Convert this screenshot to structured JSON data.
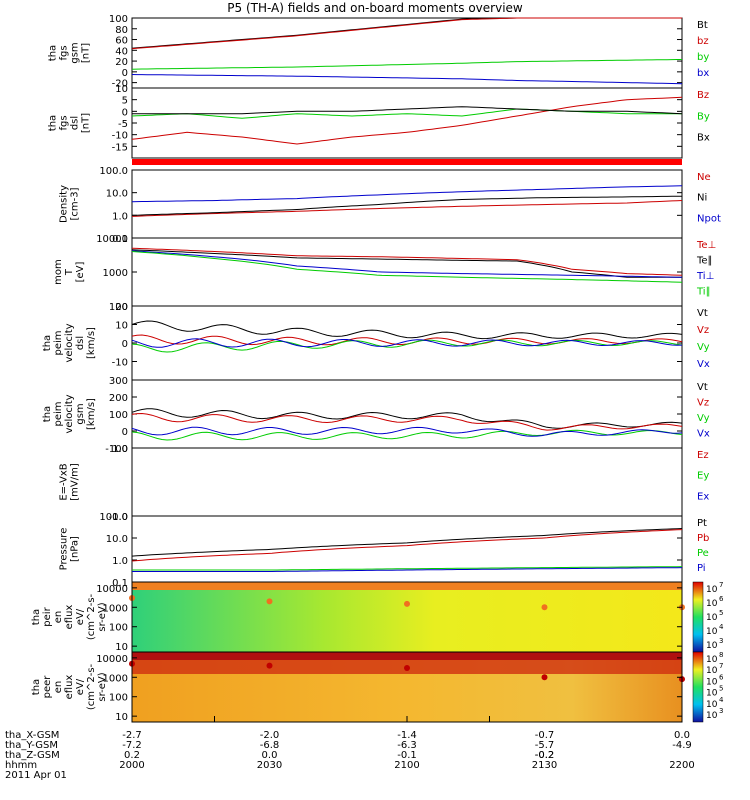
{
  "title": "P5 (TH-A) fields and on-board moments overview",
  "date_label": "2011 Apr 01",
  "chart_data": [
    {
      "type": "line",
      "panel": "fgs_gsm",
      "ylabel": [
        "tha",
        "fgs",
        "gsm",
        "[nT]"
      ],
      "ylim": [
        -30,
        100
      ],
      "yscale": "linear",
      "yticks": [
        -20,
        0,
        20,
        40,
        60,
        80,
        100
      ],
      "legend": [
        {
          "label": "Bt",
          "color": "#000000"
        },
        {
          "label": "bz",
          "color": "#cc0000"
        },
        {
          "label": "by",
          "color": "#00cc00"
        },
        {
          "label": "bx",
          "color": "#0000cc"
        }
      ],
      "x": [
        2000,
        2060,
        2120,
        2140,
        2200
      ],
      "series": [
        {
          "name": "Bt",
          "values": [
            44,
            68,
            98,
            100,
            100
          ]
        },
        {
          "name": "bz",
          "values": [
            43,
            67,
            97,
            100,
            100
          ]
        },
        {
          "name": "by",
          "values": [
            5,
            9,
            16,
            19,
            23
          ]
        },
        {
          "name": "bx",
          "values": [
            -5,
            -8,
            -13,
            -16,
            -22
          ]
        }
      ]
    },
    {
      "type": "line",
      "panel": "fgs_dsl_detrended",
      "ylabel": [
        "tha",
        "fgs",
        "dsl",
        "[nT]"
      ],
      "ylim": [
        -20,
        10
      ],
      "yscale": "linear",
      "yticks": [
        -15,
        -10,
        -5,
        0,
        5,
        10
      ],
      "legend": [
        {
          "label": "Bz",
          "color": "#cc0000"
        },
        {
          "label": "By",
          "color": "#00cc00"
        },
        {
          "label": "Bx",
          "color": "#000000"
        }
      ],
      "x": [
        2000,
        2020,
        2040,
        2060,
        2080,
        2100,
        2120,
        2140,
        2160,
        2180,
        2200
      ],
      "series": [
        {
          "name": "Bz",
          "values": [
            -12,
            -9,
            -11,
            -14,
            -11,
            -9,
            -6,
            -2,
            2,
            5,
            6
          ]
        },
        {
          "name": "By",
          "values": [
            -2,
            -1,
            -3,
            -1,
            -2,
            -1,
            -2,
            1,
            0,
            -1,
            -1
          ]
        },
        {
          "name": "Bx",
          "values": [
            -1,
            -1,
            -1,
            0,
            0,
            1,
            2,
            1,
            0,
            0,
            -1
          ]
        }
      ]
    },
    {
      "type": "line",
      "panel": "density",
      "ylabel": [
        "Density",
        "[cm-3]"
      ],
      "ylim": [
        0.1,
        100
      ],
      "yscale": "log",
      "yticks": [
        "0.1",
        "1.0",
        "10.0",
        "100.0"
      ],
      "legend": [
        {
          "label": "Ne",
          "color": "#cc0000"
        },
        {
          "label": "Ni",
          "color": "#000000"
        },
        {
          "label": "Npot",
          "color": "#0000cc"
        }
      ],
      "x": [
        2000,
        2030,
        2060,
        2090,
        2120,
        2150,
        2180,
        2200
      ],
      "series": [
        {
          "name": "Ne",
          "values": [
            0.9,
            1.2,
            1.5,
            2.0,
            2.5,
            3.0,
            3.5,
            4.5
          ]
        },
        {
          "name": "Ni",
          "values": [
            1.0,
            1.3,
            1.8,
            3.0,
            5.0,
            6.0,
            6.5,
            7.0
          ]
        },
        {
          "name": "Npot",
          "values": [
            4.0,
            4.5,
            5.5,
            8.0,
            11.0,
            14.0,
            18.0,
            20.0
          ]
        }
      ]
    },
    {
      "type": "line",
      "panel": "temperature",
      "ylabel": [
        "mom",
        "T",
        "[eV]"
      ],
      "ylim": [
        100,
        10000
      ],
      "yscale": "log",
      "yticks": [
        "100",
        "1000",
        "10000"
      ],
      "legend": [
        {
          "label": "Te⊥",
          "color": "#cc0000"
        },
        {
          "label": "Te∥",
          "color": "#000000"
        },
        {
          "label": "Ti⊥",
          "color": "#0000cc"
        },
        {
          "label": "Ti∥",
          "color": "#00cc00"
        }
      ],
      "x": [
        2000,
        2030,
        2060,
        2090,
        2120,
        2140,
        2160,
        2180,
        2200
      ],
      "series": [
        {
          "name": "Te⊥",
          "values": [
            5000,
            4000,
            3000,
            2800,
            2500,
            2300,
            1200,
            900,
            800
          ]
        },
        {
          "name": "Te∥",
          "values": [
            4500,
            3500,
            2600,
            2400,
            2200,
            2100,
            1000,
            700,
            700
          ]
        },
        {
          "name": "Ti⊥",
          "values": [
            4200,
            2800,
            1500,
            1000,
            900,
            850,
            800,
            750,
            700
          ]
        },
        {
          "name": "Ti∥",
          "values": [
            4000,
            2500,
            1200,
            800,
            700,
            650,
            600,
            550,
            500
          ]
        }
      ]
    },
    {
      "type": "line",
      "panel": "velocity_dsl",
      "ylabel": [
        "tha",
        "peim",
        "velocity",
        "dsl",
        "[km/s]"
      ],
      "ylim": [
        -20,
        20
      ],
      "yscale": "linear",
      "yticks": [
        -10,
        0,
        10,
        20
      ],
      "legend": [
        {
          "label": "Vt",
          "color": "#000000"
        },
        {
          "label": "Vz",
          "color": "#cc0000"
        },
        {
          "label": "Vy",
          "color": "#00cc00"
        },
        {
          "label": "Vx",
          "color": "#0000cc"
        }
      ],
      "x": [
        2000,
        2060,
        2120,
        2200
      ],
      "series": [
        {
          "name": "Vt",
          "values": [
            10,
            6,
            4,
            4
          ]
        },
        {
          "name": "Vz",
          "values": [
            2,
            1,
            1,
            1
          ]
        },
        {
          "name": "Vy",
          "values": [
            -3,
            -1,
            0,
            0
          ]
        },
        {
          "name": "Vx",
          "values": [
            0,
            0,
            0,
            0
          ]
        }
      ]
    },
    {
      "type": "line",
      "panel": "velocity_gsm",
      "ylabel": [
        "tha",
        "peim",
        "velocity",
        "gsm",
        "[km/s]"
      ],
      "ylim": [
        -100,
        300
      ],
      "yscale": "linear",
      "yticks": [
        -100,
        0,
        100,
        200,
        300
      ],
      "legend": [
        {
          "label": "Vt",
          "color": "#000000"
        },
        {
          "label": "Vz",
          "color": "#cc0000"
        },
        {
          "label": "Vy",
          "color": "#00cc00"
        },
        {
          "label": "Vx",
          "color": "#0000cc"
        }
      ],
      "x": [
        2000,
        2060,
        2120,
        2150,
        2200
      ],
      "series": [
        {
          "name": "Vt",
          "values": [
            110,
            90,
            90,
            30,
            40
          ]
        },
        {
          "name": "Vz",
          "values": [
            80,
            70,
            70,
            20,
            30
          ]
        },
        {
          "name": "Vy",
          "values": [
            -30,
            -30,
            -25,
            -10,
            -10
          ]
        },
        {
          "name": "Vx",
          "values": [
            0,
            0,
            5,
            -20,
            0
          ]
        }
      ]
    },
    {
      "type": "line",
      "panel": "efield",
      "ylabel": [
        "E=-VxB",
        "[mV/m]"
      ],
      "ylim": [
        -1.0,
        1.0
      ],
      "yscale": "linear",
      "yticks": [
        "-1.0",
        "1.0"
      ],
      "legend": [
        {
          "label": "Ez",
          "color": "#cc0000"
        },
        {
          "label": "Ey",
          "color": "#00cc00"
        },
        {
          "label": "Ex",
          "color": "#0000cc"
        }
      ],
      "x": [],
      "series": []
    },
    {
      "type": "line",
      "panel": "pressure",
      "ylabel": [
        "Pressure",
        "[nPa]"
      ],
      "ylim": [
        0.1,
        100
      ],
      "yscale": "log",
      "yticks": [
        "0.1",
        "1.0",
        "10.0",
        "100.0"
      ],
      "legend": [
        {
          "label": "Pt",
          "color": "#000000"
        },
        {
          "label": "Pb",
          "color": "#cc0000"
        },
        {
          "label": "Pe",
          "color": "#00cc00"
        },
        {
          "label": "Pi",
          "color": "#0000cc"
        }
      ],
      "x": [
        2000,
        2050,
        2100,
        2150,
        2200
      ],
      "series": [
        {
          "name": "Pt",
          "values": [
            1.5,
            3,
            6,
            13,
            27
          ]
        },
        {
          "name": "Pb",
          "values": [
            0.9,
            2,
            4.5,
            10,
            24
          ]
        },
        {
          "name": "Pe",
          "values": [
            0.35,
            0.35,
            0.4,
            0.45,
            0.5
          ]
        },
        {
          "name": "Pi",
          "values": [
            0.3,
            0.3,
            0.35,
            0.4,
            0.45
          ]
        }
      ]
    },
    {
      "type": "heatmap",
      "panel": "ion_spectrogram",
      "ylabel": [
        "tha",
        "peir",
        "en",
        "eflux",
        "eV/",
        "(cm^2-s-",
        "sr-eV)"
      ],
      "ylim": [
        5,
        20000
      ],
      "yscale": "log",
      "yticks": [
        "10",
        "100",
        "1000",
        "10000"
      ],
      "colorbar": {
        "exponents": [
          "7",
          "6",
          "5",
          "4",
          "3"
        ]
      },
      "x": [
        2000,
        2050,
        2100,
        2150,
        2200
      ],
      "peak_energy_ev": [
        3000,
        2000,
        1500,
        1000,
        1000
      ]
    },
    {
      "type": "heatmap",
      "panel": "electron_spectrogram",
      "ylabel": [
        "tha",
        "peer",
        "en",
        "eflux",
        "eV/",
        "(cm^2-s-",
        "sr-eV)"
      ],
      "ylim": [
        5,
        20000
      ],
      "yscale": "log",
      "yticks": [
        "10",
        "100",
        "1000",
        "10000"
      ],
      "colorbar": {
        "exponents": [
          "8",
          "7",
          "6",
          "5",
          "4",
          "3"
        ]
      },
      "x": [
        2000,
        2050,
        2100,
        2150,
        2200
      ],
      "peak_energy_ev": [
        5000,
        4000,
        3000,
        1000,
        800
      ]
    }
  ],
  "x_axis": {
    "rows": [
      {
        "label": "tha_X-GSM",
        "values": [
          "-2.7",
          "-2.0",
          "-1.4",
          "-0.7",
          "0.0"
        ]
      },
      {
        "label": "tha_Y-GSM",
        "values": [
          "-7.2",
          "-6.8",
          "-6.3",
          "-5.7",
          "-4.9"
        ]
      },
      {
        "label": "tha_Z-GSM",
        "values": [
          "0.2",
          "0.0",
          "-0.1",
          "-0.2",
          "-0.2"
        ]
      },
      {
        "label": "hhmm",
        "values": [
          "2000",
          "2030",
          "2100",
          "2130",
          "2200"
        ]
      }
    ]
  }
}
